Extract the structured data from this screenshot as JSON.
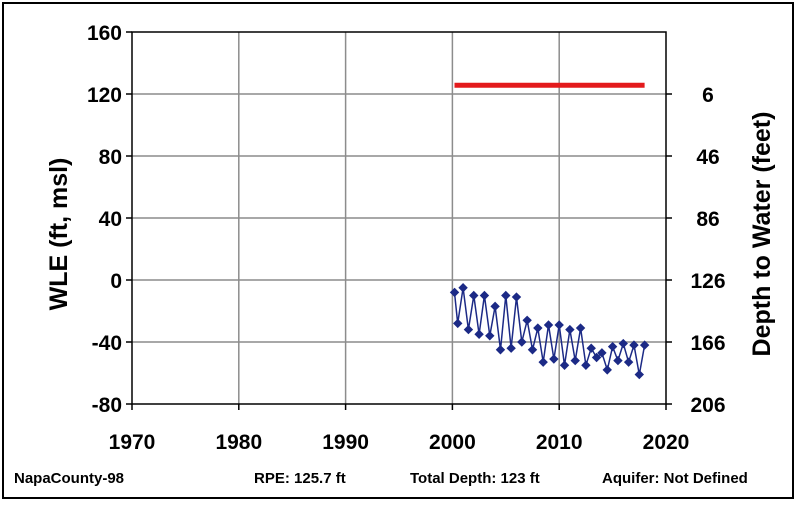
{
  "chart_data": {
    "type": "line",
    "xlim": [
      1970,
      2020
    ],
    "ylim": [
      -80,
      160
    ],
    "y2lim": [
      206,
      -34
    ],
    "x_ticks": [
      1970,
      1980,
      1990,
      2000,
      2010,
      2020
    ],
    "y_ticks": [
      160,
      120,
      80,
      40,
      0,
      -40,
      -80
    ],
    "y2_ticks": [
      "6",
      "46",
      "86",
      "126",
      "166",
      "206"
    ],
    "y2_tick_values": [
      6,
      46,
      86,
      126,
      166,
      206
    ],
    "ylabel": "WLE (ft, msl)",
    "y2label": "Depth to Water (feet)",
    "grid": true,
    "series": [
      {
        "type": "line",
        "color": "#e31a1c",
        "x": [
          2000.2,
          2018.0
        ],
        "y": [
          125.7,
          125.7
        ]
      },
      {
        "type": "line-marker",
        "marker": "diamond",
        "color": "#1c2a86",
        "x": [
          2000.2,
          2000.5,
          2001.0,
          2001.5,
          2002.0,
          2002.5,
          2003.0,
          2003.5,
          2004.0,
          2004.5,
          2005.0,
          2005.5,
          2006.0,
          2006.5,
          2007.0,
          2007.5,
          2008.0,
          2008.5,
          2009.0,
          2009.5,
          2010.0,
          2010.5,
          2011.0,
          2011.5,
          2012.0,
          2012.5,
          2013.0,
          2013.5,
          2014.0,
          2014.5,
          2015.0,
          2015.5,
          2016.0,
          2016.5,
          2017.0,
          2017.5,
          2018.0
        ],
        "y": [
          -8,
          -28,
          -5,
          -32,
          -10,
          -35,
          -10,
          -36,
          -17,
          -45,
          -10,
          -44,
          -11,
          -40,
          -26,
          -45,
          -31,
          -53,
          -29,
          -51,
          -29,
          -55,
          -32,
          -52,
          -31,
          -55,
          -44,
          -50,
          -47,
          -58,
          -43,
          -52,
          -41,
          -53,
          -42,
          -61,
          -42
        ]
      }
    ]
  },
  "footer": {
    "well_id": "NapaCounty-98",
    "rpe": "RPE: 125.7 ft",
    "total_depth": "Total Depth: 123 ft",
    "aquifer": "Aquifer: Not Defined"
  }
}
